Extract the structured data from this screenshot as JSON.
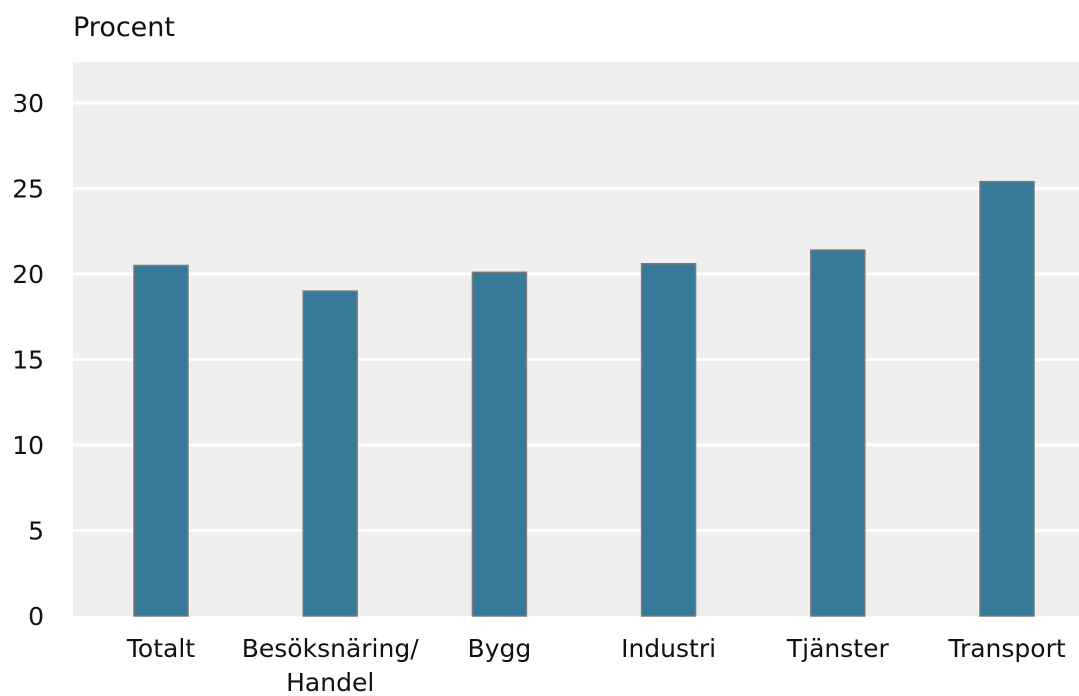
{
  "chart_data": {
    "type": "bar",
    "ylabel": "Procent",
    "categories": [
      "Totalt",
      "Besöksnäring/\nHandel",
      "Bygg",
      "Industri",
      "Tjänster",
      "Transport"
    ],
    "values": [
      20.5,
      19.0,
      20.1,
      20.6,
      21.4,
      25.4
    ],
    "ylim": [
      0,
      32
    ],
    "yticks": [
      0,
      5,
      10,
      15,
      20,
      25,
      30
    ],
    "grid": true,
    "colors": {
      "bar": "#367999",
      "bar_edge": "#7a7a7a",
      "plot_background": "#efefef",
      "gridline": "#ffffff"
    }
  }
}
